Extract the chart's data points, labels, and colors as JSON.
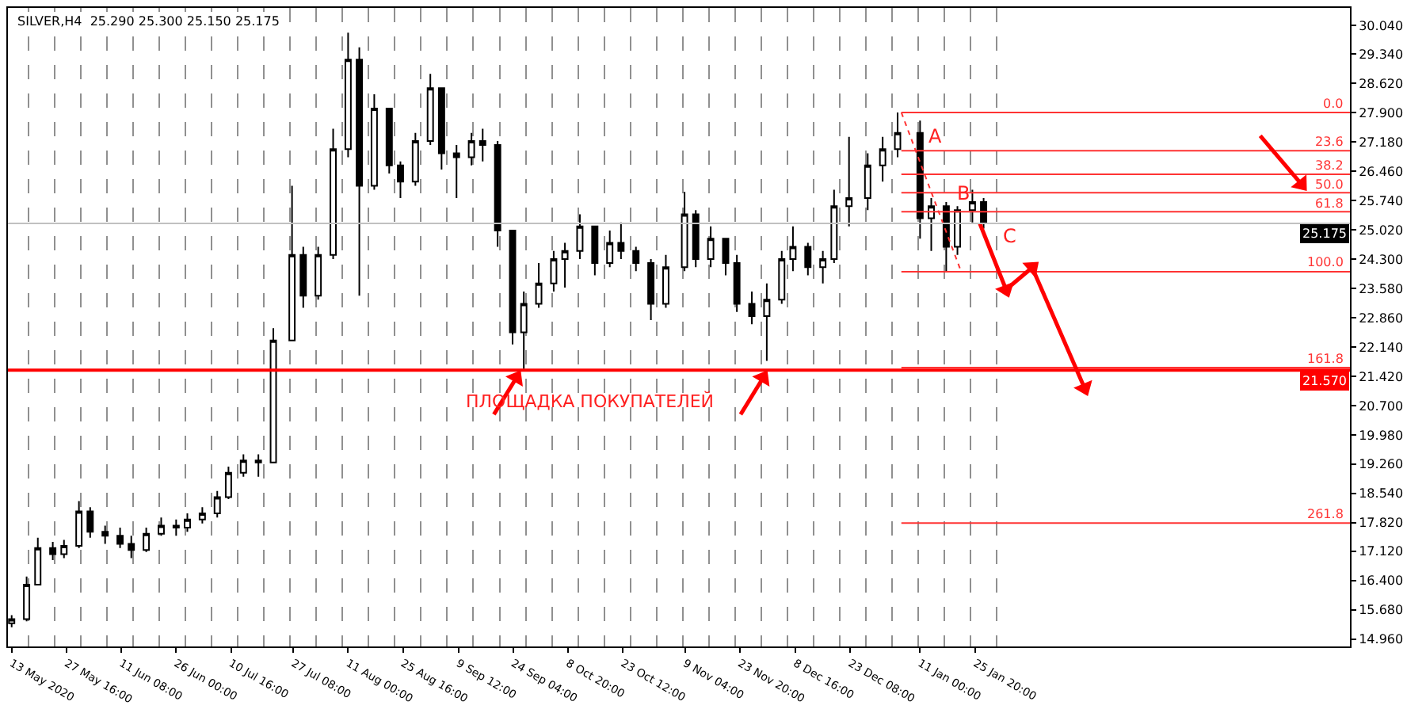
{
  "chart_data": {
    "type": "candlestick",
    "title": "SILVER,H4  25.290 25.300 25.150 25.175",
    "color": "#000000",
    "x": [
      "2020-05-13",
      "2020-05-17",
      "2020-05-20",
      "2020-05-24",
      "2020-05-27",
      "2020-05-31",
      "2020-06-03",
      "2020-06-07",
      "2020-06-11",
      "2020-06-14",
      "2020-06-18",
      "2020-06-22",
      "2020-06-26",
      "2020-06-29",
      "2020-07-03",
      "2020-07-07",
      "2020-07-10",
      "2020-07-14",
      "2020-07-18",
      "2020-07-22",
      "2020-07-27",
      "2020-07-30",
      "2020-08-03",
      "2020-08-07",
      "2020-08-11",
      "2020-08-14",
      "2020-08-18",
      "2020-08-22",
      "2020-08-25",
      "2020-08-29",
      "2020-09-02",
      "2020-09-05",
      "2020-09-09",
      "2020-09-13",
      "2020-09-16",
      "2020-09-20",
      "2020-09-24",
      "2020-09-27",
      "2020-10-01",
      "2020-10-05",
      "2020-10-08",
      "2020-10-12",
      "2020-10-16",
      "2020-10-20",
      "2020-10-23",
      "2020-10-27",
      "2020-10-31",
      "2020-11-04",
      "2020-11-09",
      "2020-11-12",
      "2020-11-16",
      "2020-11-20",
      "2020-11-23",
      "2020-11-27",
      "2020-12-01",
      "2020-12-05",
      "2020-12-08",
      "2020-12-12",
      "2020-12-16",
      "2020-12-19",
      "2020-12-23",
      "2020-12-28",
      "2021-01-01",
      "2021-01-05",
      "2021-01-11",
      "2021-01-14",
      "2021-01-18",
      "2021-01-21",
      "2021-01-25",
      "2021-01-28"
    ],
    "ohlc": [
      [
        15.35,
        15.55,
        15.25,
        15.45
      ],
      [
        15.45,
        16.5,
        15.4,
        16.3
      ],
      [
        16.3,
        17.45,
        16.3,
        17.2
      ],
      [
        17.2,
        17.35,
        16.9,
        17.05
      ],
      [
        17.05,
        17.4,
        16.95,
        17.25
      ],
      [
        17.25,
        18.35,
        17.2,
        18.1
      ],
      [
        18.1,
        18.2,
        17.45,
        17.6
      ],
      [
        17.6,
        17.75,
        17.3,
        17.5
      ],
      [
        17.5,
        17.7,
        17.2,
        17.3
      ],
      [
        17.3,
        17.5,
        16.95,
        17.15
      ],
      [
        17.15,
        17.7,
        17.1,
        17.55
      ],
      [
        17.55,
        17.95,
        17.5,
        17.75
      ],
      [
        17.75,
        17.9,
        17.5,
        17.7
      ],
      [
        17.7,
        18.05,
        17.6,
        17.9
      ],
      [
        17.9,
        18.2,
        17.8,
        18.05
      ],
      [
        18.05,
        18.6,
        17.95,
        18.45
      ],
      [
        18.45,
        19.2,
        18.4,
        19.05
      ],
      [
        19.05,
        19.5,
        18.95,
        19.35
      ],
      [
        19.35,
        19.5,
        18.95,
        19.3
      ],
      [
        19.3,
        22.6,
        19.3,
        22.3
      ],
      [
        22.3,
        26.1,
        22.3,
        24.4
      ],
      [
        24.4,
        24.6,
        23.1,
        23.4
      ],
      [
        23.4,
        24.6,
        23.3,
        24.4
      ],
      [
        24.4,
        27.5,
        24.3,
        27.0
      ],
      [
        27.0,
        29.86,
        26.8,
        29.2
      ],
      [
        29.2,
        29.5,
        23.4,
        26.1
      ],
      [
        26.1,
        28.35,
        26.0,
        28.0
      ],
      [
        28.0,
        28.0,
        26.4,
        26.6
      ],
      [
        26.6,
        26.7,
        25.8,
        26.2
      ],
      [
        26.2,
        27.4,
        26.1,
        27.2
      ],
      [
        27.2,
        28.85,
        27.1,
        28.5
      ],
      [
        28.5,
        28.5,
        26.5,
        26.9
      ],
      [
        26.9,
        27.1,
        25.8,
        26.8
      ],
      [
        26.8,
        27.4,
        26.6,
        27.2
      ],
      [
        27.2,
        27.5,
        26.7,
        27.1
      ],
      [
        27.1,
        27.2,
        24.6,
        25.0
      ],
      [
        25.0,
        25.0,
        22.2,
        22.5
      ],
      [
        22.5,
        23.5,
        21.6,
        23.2
      ],
      [
        23.2,
        24.2,
        23.1,
        23.7
      ],
      [
        23.7,
        24.5,
        23.5,
        24.3
      ],
      [
        24.3,
        24.7,
        23.6,
        24.5
      ],
      [
        24.5,
        25.4,
        24.3,
        25.1
      ],
      [
        25.1,
        25.1,
        23.9,
        24.2
      ],
      [
        24.2,
        25.0,
        24.1,
        24.7
      ],
      [
        24.7,
        25.2,
        24.3,
        24.5
      ],
      [
        24.5,
        24.6,
        24.0,
        24.2
      ],
      [
        24.2,
        24.3,
        22.8,
        23.2
      ],
      [
        23.2,
        24.4,
        23.1,
        24.1
      ],
      [
        24.1,
        25.95,
        24.0,
        25.4
      ],
      [
        25.4,
        25.5,
        24.1,
        24.3
      ],
      [
        24.3,
        25.1,
        24.1,
        24.8
      ],
      [
        24.8,
        24.8,
        23.9,
        24.2
      ],
      [
        24.2,
        24.4,
        23.0,
        23.2
      ],
      [
        23.2,
        23.5,
        22.7,
        22.9
      ],
      [
        22.9,
        23.7,
        21.8,
        23.3
      ],
      [
        23.3,
        24.5,
        23.2,
        24.3
      ],
      [
        24.3,
        25.1,
        24.0,
        24.6
      ],
      [
        24.6,
        24.7,
        23.9,
        24.1
      ],
      [
        24.1,
        24.5,
        23.7,
        24.3
      ],
      [
        24.3,
        26.0,
        24.2,
        25.6
      ],
      [
        25.6,
        27.3,
        25.1,
        25.8
      ],
      [
        25.8,
        26.9,
        25.5,
        26.6
      ],
      [
        26.6,
        27.3,
        26.2,
        27.0
      ],
      [
        27.0,
        27.9,
        26.8,
        27.4
      ],
      [
        27.4,
        27.7,
        24.8,
        25.3
      ],
      [
        25.3,
        25.8,
        24.5,
        25.6
      ],
      [
        25.6,
        25.7,
        24.0,
        24.6
      ],
      [
        24.6,
        25.6,
        24.4,
        25.5
      ],
      [
        25.5,
        26.0,
        25.2,
        25.7
      ],
      [
        25.7,
        25.8,
        25.05,
        25.175
      ]
    ],
    "series": [
      {
        "type": "line",
        "name": "0.0",
        "color": "#ff3333",
        "x": [
          "2021-01-06",
          "2021-05-06"
        ],
        "values": [
          27.9,
          27.9
        ]
      },
      {
        "type": "line",
        "name": "23.6",
        "color": "#ff3333",
        "x": [
          "2021-01-06",
          "2021-05-06"
        ],
        "values": [
          26.96,
          26.96
        ]
      },
      {
        "type": "line",
        "name": "38.2",
        "color": "#ff3333",
        "x": [
          "2021-01-06",
          "2021-05-06"
        ],
        "values": [
          26.38,
          26.38
        ]
      },
      {
        "type": "line",
        "name": "50.0",
        "color": "#ff3333",
        "x": [
          "2021-01-06",
          "2021-05-06"
        ],
        "values": [
          25.93,
          25.93
        ]
      },
      {
        "type": "line",
        "name": "61.8",
        "color": "#ff3333",
        "x": [
          "2021-01-06",
          "2021-05-06"
        ],
        "values": [
          25.46,
          25.46
        ]
      },
      {
        "type": "line",
        "name": "100.0",
        "color": "#ff3333",
        "x": [
          "2021-01-06",
          "2021-05-06"
        ],
        "values": [
          23.99,
          23.99
        ]
      },
      {
        "type": "line",
        "name": "161.8",
        "color": "#ff3333",
        "x": [
          "2021-01-06",
          "2021-05-06"
        ],
        "values": [
          21.63,
          21.63
        ]
      },
      {
        "type": "line",
        "name": "261.8",
        "color": "#ff3333",
        "x": [
          "2021-01-06",
          "2021-05-06"
        ],
        "values": [
          17.81,
          17.81
        ]
      },
      {
        "type": "line",
        "color": "#ff3333",
        "line_style": "dotted",
        "x": [
          "2021-01-06",
          "2021-01-22"
        ],
        "values": [
          27.9,
          23.99
        ]
      },
      {
        "type": "line",
        "color": "#ff0000",
        "marker": "triangle",
        "x": [
          "2021-01-27",
          "2021-02-03"
        ],
        "values": [
          25.17,
          23.55
        ]
      },
      {
        "type": "line",
        "color": "#ff0000",
        "marker": "triangle",
        "x": [
          "2021-02-03",
          "2021-02-10"
        ],
        "values": [
          23.55,
          24.09
        ]
      },
      {
        "type": "line",
        "color": "#ff0000",
        "marker": "triangle",
        "x": [
          "2021-02-10",
          "2021-02-24"
        ],
        "values": [
          24.09,
          21.13
        ]
      },
      {
        "type": "line",
        "color": "#ff0000",
        "marker": "triangle",
        "x": [
          "2020-09-19",
          "2020-09-25"
        ],
        "values": [
          20.48,
          21.38
        ]
      },
      {
        "type": "line",
        "color": "#ff0000",
        "marker": "triangle",
        "x": [
          "2020-11-24",
          "2020-11-30"
        ],
        "values": [
          20.48,
          21.38
        ]
      },
      {
        "type": "line",
        "color": "#ff0000",
        "marker": "triangle",
        "x": [
          "2021-04-12",
          "2021-04-23"
        ],
        "values": [
          27.33,
          26.14
        ]
      }
    ],
    "ref_lines": [
      {
        "axis": "y",
        "value": 25.175,
        "label": "25.175",
        "color": "#c0c0c0"
      },
      {
        "axis": "y",
        "value": 21.57,
        "label": "21.570",
        "color": "#ff0000"
      }
    ],
    "annotations": [
      {
        "text": "A",
        "x": "2021-01-08T08:00",
        "y": 27.33
      },
      {
        "text": "B",
        "x": "2021-01-16",
        "y": 25.93
      },
      {
        "text": "C",
        "x": "2021-01-28T06:00",
        "y": 24.88
      },
      {
        "text": "ПЛОЩАДКА ПОКУПАТЕЛЕЙ",
        "x": "2020-11-24",
        "y": 20.48
      }
    ],
    "xlim": [
      "2020-05-12",
      "2021-05-06"
    ],
    "ylim": [
      14.78,
      30.47
    ],
    "yticks": [
      {
        "value": 14.96,
        "label": "14.960"
      },
      {
        "value": 15.68,
        "label": "15.680"
      },
      {
        "value": 16.4,
        "label": "16.400"
      },
      {
        "value": 17.12,
        "label": "17.120"
      },
      {
        "value": 17.82,
        "label": "17.820"
      },
      {
        "value": 18.54,
        "label": "18.540"
      },
      {
        "value": 19.26,
        "label": "19.260"
      },
      {
        "value": 19.98,
        "label": "19.980"
      },
      {
        "value": 20.7,
        "label": "20.700"
      },
      {
        "value": 21.42,
        "label": "21.420"
      },
      {
        "value": 22.14,
        "label": "22.140"
      },
      {
        "value": 22.86,
        "label": "22.860"
      },
      {
        "value": 23.58,
        "label": "23.580"
      },
      {
        "value": 24.3,
        "label": "24.300"
      },
      {
        "value": 25.02,
        "label": "25.020"
      },
      {
        "value": 25.74,
        "label": "25.740"
      },
      {
        "value": 26.46,
        "label": "26.460"
      },
      {
        "value": 27.18,
        "label": "27.180"
      },
      {
        "value": 27.9,
        "label": "27.900"
      },
      {
        "value": 28.62,
        "label": "28.620"
      },
      {
        "value": 29.34,
        "label": "29.340"
      },
      {
        "value": 30.04,
        "label": "30.040"
      }
    ],
    "xticks": [
      {
        "value": "2020-05-13",
        "label": "13 May 2020"
      },
      {
        "value": "2020-05-27T16:00",
        "label": "27 May 16:00"
      },
      {
        "value": "2020-06-11T08:00",
        "label": "11 Jun 08:00"
      },
      {
        "value": "2020-06-26",
        "label": "26 Jun 00:00"
      },
      {
        "value": "2020-07-10T16:00",
        "label": "10 Jul 16:00"
      },
      {
        "value": "2020-07-27T08:00",
        "label": "27 Jul 08:00"
      },
      {
        "value": "2020-08-11",
        "label": "11 Aug 00:00"
      },
      {
        "value": "2020-08-25T16:00",
        "label": "25 Aug 16:00"
      },
      {
        "value": "2020-09-09T12:00",
        "label": "9 Sep 12:00"
      },
      {
        "value": "2020-09-24T04:00",
        "label": "24 Sep 04:00"
      },
      {
        "value": "2020-10-08T20:00",
        "label": "8 Oct 20:00"
      },
      {
        "value": "2020-10-23T12:00",
        "label": "23 Oct 12:00"
      },
      {
        "value": "2020-11-09T04:00",
        "label": "9 Nov 04:00"
      },
      {
        "value": "2020-11-23T20:00",
        "label": "23 Nov 20:00"
      },
      {
        "value": "2020-12-08T16:00",
        "label": "8 Dec 16:00"
      },
      {
        "value": "2020-12-23T08:00",
        "label": "23 Dec 08:00"
      },
      {
        "value": "2021-01-11",
        "label": "11 Jan 00:00"
      },
      {
        "value": "2021-01-25T20:00",
        "label": "25 Jan 20:00"
      },
      {
        "value": "2020-05-17T12:00",
        "label": null
      },
      {
        "value": "2020-05-24T12:00",
        "label": null
      },
      {
        "value": "2020-05-31T12:00",
        "label": null
      },
      {
        "value": "2020-06-07T12:00",
        "label": null
      },
      {
        "value": "2020-06-14T12:00",
        "label": null
      },
      {
        "value": "2020-06-21T12:00",
        "label": null
      },
      {
        "value": "2020-06-28T12:00",
        "label": null
      },
      {
        "value": "2020-07-05T12:00",
        "label": null
      },
      {
        "value": "2020-07-12T12:00",
        "label": null
      },
      {
        "value": "2020-07-19T12:00",
        "label": null
      },
      {
        "value": "2020-07-26T12:00",
        "label": null
      },
      {
        "value": "2020-08-02T12:00",
        "label": null
      },
      {
        "value": "2020-08-09T12:00",
        "label": null
      },
      {
        "value": "2020-08-16T12:00",
        "label": null
      },
      {
        "value": "2020-08-23T12:00",
        "label": null
      },
      {
        "value": "2020-08-30T12:00",
        "label": null
      },
      {
        "value": "2020-09-06T12:00",
        "label": null
      },
      {
        "value": "2020-09-13T12:00",
        "label": null
      },
      {
        "value": "2020-09-20T12:00",
        "label": null
      },
      {
        "value": "2020-09-27T12:00",
        "label": null
      },
      {
        "value": "2020-10-04T12:00",
        "label": null
      },
      {
        "value": "2020-10-11T12:00",
        "label": null
      },
      {
        "value": "2020-10-18T12:00",
        "label": null
      },
      {
        "value": "2020-10-25T12:00",
        "label": null
      },
      {
        "value": "2020-11-01T12:00",
        "label": null
      },
      {
        "value": "2020-11-08T12:00",
        "label": null
      },
      {
        "value": "2020-11-15T12:00",
        "label": null
      },
      {
        "value": "2020-11-22T12:00",
        "label": null
      },
      {
        "value": "2020-11-29T12:00",
        "label": null
      },
      {
        "value": "2020-12-06T12:00",
        "label": null
      },
      {
        "value": "2020-12-13T12:00",
        "label": null
      },
      {
        "value": "2020-12-20T12:00",
        "label": null
      },
      {
        "value": "2020-12-27T12:00",
        "label": null
      },
      {
        "value": "2021-01-03T12:00",
        "label": null
      },
      {
        "value": "2021-01-10T12:00",
        "label": null
      },
      {
        "value": "2021-01-17T12:00",
        "label": null
      },
      {
        "value": "2021-01-24T12:00",
        "label": null
      },
      {
        "value": "2021-01-31T12:00",
        "label": null
      }
    ],
    "grid": "x"
  }
}
